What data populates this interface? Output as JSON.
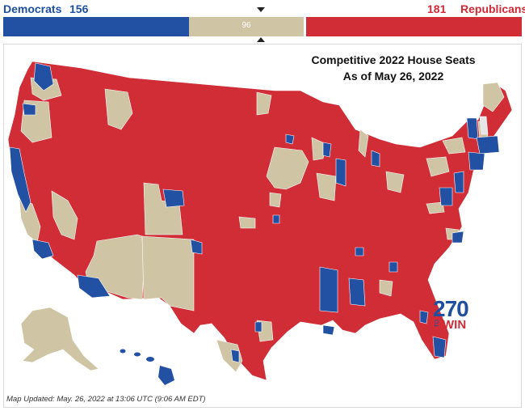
{
  "header": {
    "dem_label": "Democrats",
    "dem_count": "156",
    "rep_count": "181",
    "rep_label": "Republicans",
    "tossup_count": "96",
    "dem_seats": 156,
    "tossup_seats": 96,
    "rep_seats": 181
  },
  "map": {
    "title_line1": "Competitive 2022 House Seats",
    "title_line2": "As of May 26, 2022",
    "colors": {
      "democrat": "#2250a3",
      "republican": "#d02d37",
      "tossup": "#cfc4a4",
      "undecided": "#e6e6e6"
    }
  },
  "logo": {
    "number": "270",
    "to": "TO",
    "win": "WIN"
  },
  "footer": {
    "updated_text": "Map Updated: May. 26, 2022 at 13:06 UTC (9:06 AM EDT)"
  }
}
